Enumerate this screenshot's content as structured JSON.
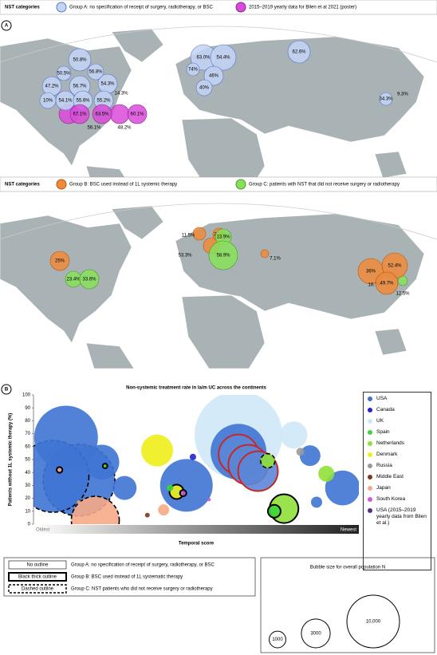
{
  "panel_a": {
    "label": "A",
    "legend_top": {
      "title": "NST categories",
      "items": [
        "Group A: no specification of receipt of surgery, radiotherapy, or BSC",
        "2015–2019 yearly data for Bilen et al 2021 (poster)"
      ]
    },
    "map_top_labels": [
      "50.8%",
      "50.5%",
      "56.8%",
      "47.2%",
      "56.7%",
      "54.3%",
      "10%",
      "54.1%",
      "55.6%",
      "55.2%",
      "14.3%",
      "67.1%",
      "63.5%",
      "60.1%",
      "56.1%",
      "48.2%",
      "63.0%",
      "54.4%",
      "74%",
      "46%",
      "40%",
      "62.6%",
      "34.3%",
      "9.3%"
    ],
    "legend_bottom": {
      "title": "NST categories",
      "items": [
        "Group B: BSC used instead of 1L systemic therapy",
        "Group C: patients with NST that did not receive surgery or radiotherapy"
      ]
    },
    "map_bottom_labels": [
      "25%",
      "23.4%",
      "33.6%",
      "11.5%",
      "2.1%",
      "13.9%",
      "53.3%",
      "58.9%",
      "7.1%",
      "36%",
      "52.4%",
      "16.7%",
      "49.7%",
      "12.5%"
    ]
  },
  "panel_b_label": "B",
  "chart_data": {
    "type": "bubble",
    "title": "Non-systemic treatment rate in la/m UC across the continents",
    "y_label": "Patients without 1L systemic therapy (%)",
    "x_label": "Temporal score",
    "x_start_label": "Oldest",
    "x_end_label": "Newest",
    "xlim": [
      0,
      1
    ],
    "ylim": [
      0,
      100
    ],
    "yticks": [
      0,
      10,
      20,
      30,
      40,
      50,
      60,
      70,
      80,
      90,
      100
    ],
    "series": [
      {
        "name": "USA",
        "color": "#3f74d4",
        "x": [
          0.1,
          0.14,
          0.06,
          0.21,
          0.28,
          0.47,
          0.63,
          0.85,
          0.95,
          0.87
        ],
        "values": [
          67,
          34,
          37,
          48,
          28,
          30,
          56,
          53,
          28,
          17
        ],
        "sizes": [
          14700,
          18600,
          18600,
          4400,
          2070,
          10000,
          11250,
          1550,
          4400,
          450
        ],
        "outlines": [
          "none",
          "dashed",
          "dashed",
          "none",
          "none",
          "none",
          "none",
          "none",
          "none",
          "none"
        ]
      },
      {
        "name": "Canada",
        "color": "#2323d6",
        "x": [
          0.49
        ],
        "values": [
          52
        ],
        "sizes": [
          150
        ],
        "outlines": [
          "none"
        ]
      },
      {
        "name": "UK",
        "color": "#cfe8f7",
        "x": [
          0.63,
          0.8
        ],
        "values": [
          69,
          69
        ],
        "sizes": [
          27800,
          2650
        ],
        "outlines": [
          "none",
          "none"
        ]
      },
      {
        "name": "Spain",
        "color": "#3cd63c",
        "x": [
          0.42,
          0.74,
          0.22
        ],
        "values": [
          28,
          10,
          45
        ],
        "sizes": [
          150,
          590,
          80
        ],
        "outlines": [
          "none",
          "thick",
          "thick"
        ]
      },
      {
        "name": "Netherlands",
        "color": "#8fe03a",
        "x": [
          0.9,
          0.72,
          0.77
        ],
        "values": [
          39,
          49,
          12
        ],
        "sizes": [
          920,
          740,
          3000
        ],
        "outlines": [
          "none",
          "dashed",
          "thick"
        ]
      },
      {
        "name": "Denmark",
        "color": "#eeee1a",
        "x": [
          0.38,
          0.44
        ],
        "values": [
          57,
          25
        ],
        "sizes": [
          3670,
          740
        ],
        "outlines": [
          "none",
          "thick"
        ]
      },
      {
        "name": "Russia",
        "color": "#999999",
        "x": [
          0.82
        ],
        "values": [
          56
        ],
        "sizes": [
          230
        ],
        "outlines": [
          "none"
        ]
      },
      {
        "name": "Middle East",
        "color": "#7a3a1c",
        "x": [
          0.35
        ],
        "values": [
          7
        ],
        "sizes": [
          80
        ],
        "outlines": [
          "none"
        ]
      },
      {
        "name": "Japan",
        "color": "#f6a887",
        "x": [
          0.19,
          0.4,
          0.08,
          0.14
        ],
        "values": [
          3,
          11,
          42,
          17
        ],
        "sizes": [
          8300,
          450,
          120,
          60
        ],
        "outlines": [
          "dashed",
          "none",
          "thick",
          "none"
        ]
      },
      {
        "name": "South Korea",
        "color": "#c95ccf",
        "x": [
          0.46,
          0.54
        ],
        "values": [
          24,
          19
        ],
        "sizes": [
          150,
          40
        ],
        "outlines": [
          "thick",
          "none"
        ]
      },
      {
        "name": "USA (2015–2019 yearly data from Bilen et al.)",
        "color": "#5b2b86",
        "fill": "#5b86d6",
        "edge": "#c62828",
        "x": [
          0.63,
          0.66,
          0.69
        ],
        "values": [
          54,
          46,
          41
        ],
        "sizes": [
          5700,
          5700,
          5700
        ],
        "outlines": [
          "edge",
          "edge",
          "edge"
        ]
      }
    ],
    "outline_legend": [
      {
        "style": "No outline",
        "text": "Group A: no specification of receipt of surgery, radiotherapy, or BSC"
      },
      {
        "style": "Black thick outline",
        "text": "Group B: BSC used instead of 1L systematic therapy"
      },
      {
        "style": "Dashed outline",
        "text": "Group C: NST patients who did not receive surgery or radiotherapy"
      }
    ],
    "size_legend": {
      "title": "Bubble size for overall population N",
      "sizes": [
        1000,
        3000,
        {
          "value": 10000,
          "label": "10,000"
        }
      ]
    }
  }
}
